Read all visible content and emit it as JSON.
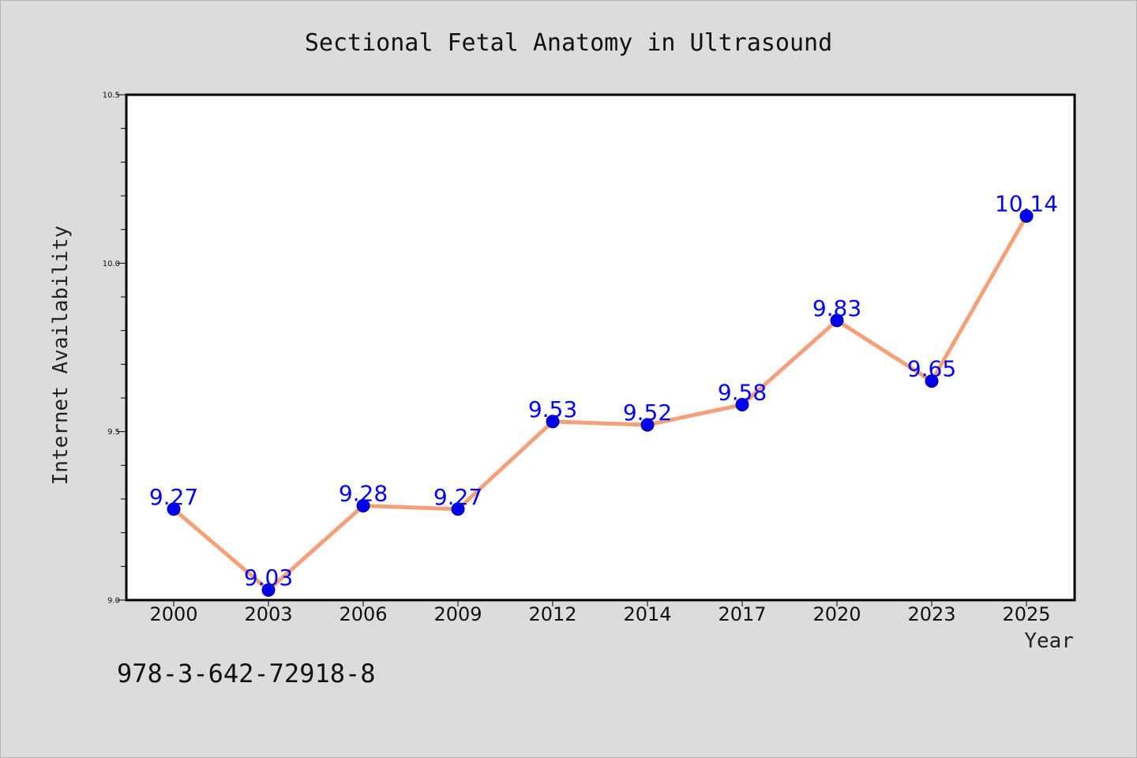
{
  "chart_data": {
    "type": "line",
    "title": "Sectional Fetal Anatomy in Ultrasound",
    "xlabel": "Year",
    "ylabel": "Internet Availability",
    "categories": [
      "2000",
      "2003",
      "2006",
      "2009",
      "2012",
      "2014",
      "2017",
      "2020",
      "2023",
      "2025"
    ],
    "series": [
      {
        "values": [
          9.27,
          9.03,
          9.28,
          9.27,
          9.53,
          9.52,
          9.58,
          9.83,
          9.65,
          10.14
        ]
      }
    ],
    "data_labels": [
      "9.27",
      "9.03",
      "9.28",
      "9.27",
      "9.53",
      "9.52",
      "9.58",
      "9.83",
      "9.65",
      "10.14"
    ],
    "ylim": [
      9.0,
      10.5
    ],
    "y_ticks": [
      "9.0",
      "9.5",
      "10.0",
      "10.5"
    ],
    "grid": false,
    "colors": {
      "line": "#f4a07a",
      "marker": "#0000ee",
      "data_label": "#0000ff",
      "plot_background": "#ffffff",
      "page_background": "#dcdcdc"
    }
  },
  "footer": {
    "code": "978-3-642-72918-8"
  }
}
